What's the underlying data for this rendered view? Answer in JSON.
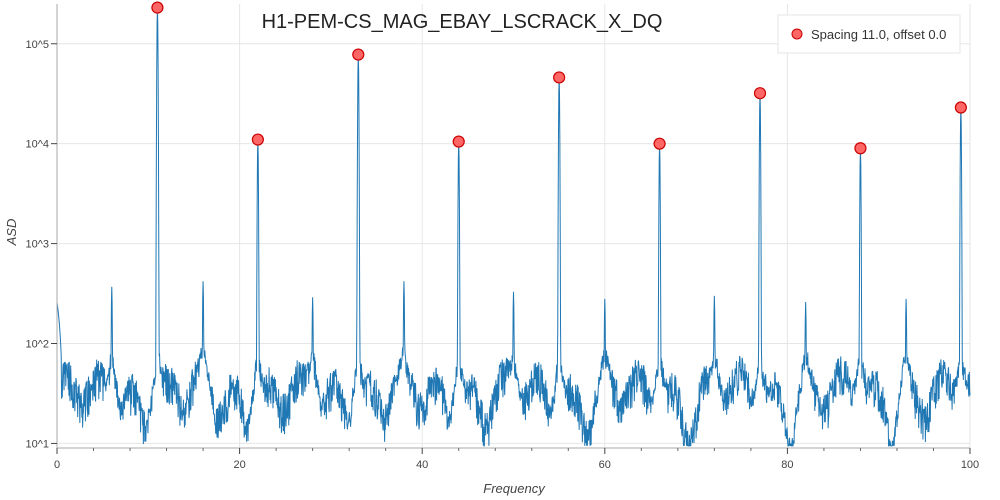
{
  "chart_data": {
    "type": "line",
    "title": "H1-PEM-CS_MAG_EBAY_LSCRACK_X_DQ",
    "xlabel": "Frequency",
    "ylabel": "ASD",
    "xlim": [
      0,
      100
    ],
    "ylim": [
      9,
      250000
    ],
    "yscale": "log",
    "grid": true,
    "x_ticks": [
      0,
      20,
      40,
      60,
      80,
      100
    ],
    "y_ticks": [
      {
        "value": 10,
        "label": "10^1"
      },
      {
        "value": 100,
        "label": "10^2"
      },
      {
        "value": 1000,
        "label": "10^3"
      },
      {
        "value": 10000,
        "label": "10^4"
      },
      {
        "value": 100000,
        "label": "10^5"
      }
    ],
    "legend": {
      "placement": "top-right",
      "label": "Spacing 11.0, offset 0.0"
    },
    "markers": {
      "name": "Spacing 11.0, offset 0.0",
      "color": "#ff6666",
      "edge_color": "#cc0000",
      "x": [
        11,
        22,
        33,
        44,
        55,
        66,
        77,
        88,
        99
      ],
      "y": [
        230000,
        11000,
        78000,
        10500,
        46000,
        10000,
        32000,
        9000,
        23000
      ]
    },
    "series": [
      {
        "line_color": "#1f77b4",
        "peaks": [
          {
            "x": 6,
            "y": 370
          },
          {
            "x": 11,
            "y": 230000
          },
          {
            "x": 16,
            "y": 420
          },
          {
            "x": 22,
            "y": 11000
          },
          {
            "x": 28,
            "y": 290
          },
          {
            "x": 33,
            "y": 78000
          },
          {
            "x": 38,
            "y": 420
          },
          {
            "x": 44,
            "y": 10500
          },
          {
            "x": 50,
            "y": 330
          },
          {
            "x": 55,
            "y": 46000
          },
          {
            "x": 60,
            "y": 280
          },
          {
            "x": 66,
            "y": 10000
          },
          {
            "x": 72,
            "y": 300
          },
          {
            "x": 77,
            "y": 32000
          },
          {
            "x": 82,
            "y": 260
          },
          {
            "x": 88,
            "y": 9000
          },
          {
            "x": 93,
            "y": 280
          },
          {
            "x": 99,
            "y": 23000
          }
        ],
        "noise_floor": 30
      }
    ]
  }
}
